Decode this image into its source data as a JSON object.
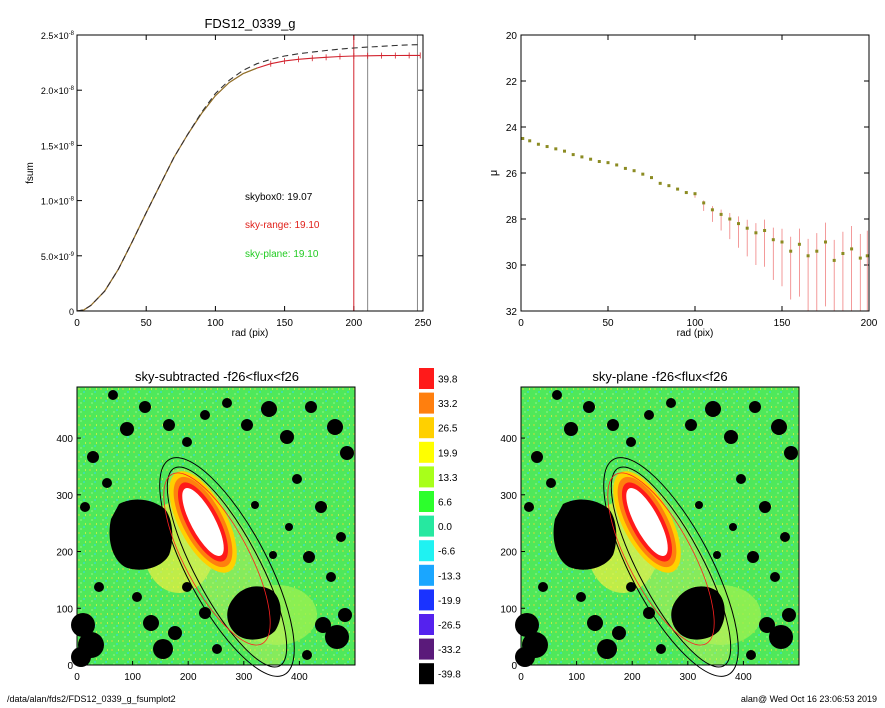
{
  "chart_data": [
    {
      "type": "line",
      "title": "FDS12_0339_g",
      "xlabel": "rad (pix)",
      "ylabel": "fsum",
      "xlim": [
        0,
        250
      ],
      "ylim": [
        0,
        2.5e-08
      ],
      "x_ticks": [
        0,
        50,
        100,
        150,
        200,
        250
      ],
      "x_tick_labels": [
        "0",
        "50",
        "100",
        "150",
        "200",
        "250"
      ],
      "y_ticks": [
        0,
        5e-09,
        1e-08,
        1.5e-08,
        2e-08,
        2.5e-08
      ],
      "y_tick_labels": [
        {
          "mant": "0",
          "exp": ""
        },
        {
          "mant": "5.0×10",
          "exp": "-9"
        },
        {
          "mant": "1.0×10",
          "exp": "-8"
        },
        {
          "mant": "1.5×10",
          "exp": "-8"
        },
        {
          "mant": "2.0×10",
          "exp": "-8"
        },
        {
          "mant": "2.5×10",
          "exp": "-8"
        }
      ],
      "series": [
        {
          "kind": "curve-of-growth",
          "color": "#d2222d",
          "x": [
            0,
            5,
            10,
            20,
            30,
            40,
            50,
            60,
            70,
            80,
            90,
            100,
            110,
            120,
            130,
            140,
            150,
            160,
            170,
            180,
            190,
            200,
            210,
            220,
            230,
            240,
            248
          ],
          "values": [
            0,
            1e-10,
            5e-10,
            1.8e-09,
            3.8e-09,
            6.3e-09,
            8.9e-09,
            1.14e-08,
            1.39e-08,
            1.6e-08,
            1.79e-08,
            1.95e-08,
            2.07e-08,
            2.15e-08,
            2.2e-08,
            2.24e-08,
            2.265e-08,
            2.28e-08,
            2.29e-08,
            2.298e-08,
            2.305e-08,
            2.31e-08,
            2.312e-08,
            2.313e-08,
            2.314e-08,
            2.315e-08,
            2.315e-08
          ]
        },
        {
          "kind": "sky-plane-curve",
          "color": "#8a7a2a",
          "x": [
            0,
            5,
            10,
            20,
            30,
            40,
            50,
            60,
            70,
            80,
            90,
            100,
            110,
            120,
            130
          ],
          "values": [
            0,
            1e-10,
            5e-10,
            1.8e-09,
            3.8e-09,
            6.3e-09,
            8.9e-09,
            1.14e-08,
            1.39e-08,
            1.6e-08,
            1.79e-08,
            1.95e-08,
            2.07e-08,
            2.15e-08,
            2.2e-08
          ]
        },
        {
          "kind": "dashed-reference",
          "color": "#333333",
          "x": [
            0,
            5,
            10,
            20,
            30,
            40,
            50,
            60,
            70,
            80,
            90,
            100,
            110,
            120,
            130,
            140,
            150,
            160,
            170,
            180,
            190,
            200,
            210,
            220,
            230,
            240,
            248
          ],
          "values": [
            0,
            1e-10,
            5e-10,
            1.8e-09,
            3.8e-09,
            6.3e-09,
            8.9e-09,
            1.14e-08,
            1.39e-08,
            1.6e-08,
            1.8e-08,
            1.97e-08,
            2.09e-08,
            2.18e-08,
            2.24e-08,
            2.28e-08,
            2.31e-08,
            2.33e-08,
            2.345e-08,
            2.36e-08,
            2.372e-08,
            2.382e-08,
            2.39e-08,
            2.398e-08,
            2.405e-08,
            2.41e-08,
            2.413e-08
          ]
        }
      ],
      "vlines": [
        {
          "x": 200,
          "color": "#d2222d"
        },
        {
          "x": 210,
          "color": "#888888"
        },
        {
          "x": 246,
          "color": "#888888"
        }
      ],
      "annotations": [
        {
          "text": "skybox0: 19.07",
          "color": "#000000"
        },
        {
          "text": "sky-range: 19.10",
          "color": "#e0201a"
        },
        {
          "text": "sky-plane: 19.10",
          "color": "#22cc22"
        }
      ]
    },
    {
      "type": "scatter",
      "title": "",
      "xlabel": "rad (pix)",
      "ylabel": "μ",
      "xlim": [
        0,
        200
      ],
      "ylim": [
        32,
        20
      ],
      "x_ticks": [
        0,
        50,
        100,
        150,
        200
      ],
      "y_ticks": [
        20,
        22,
        24,
        26,
        28,
        30,
        32
      ],
      "series": [
        {
          "color": "#8b8b22",
          "x": [
            1,
            5,
            10,
            15,
            20,
            25,
            30,
            35,
            40,
            45,
            50,
            55,
            60,
            65,
            70,
            75,
            80,
            85,
            90,
            95,
            100,
            105,
            110,
            115,
            120,
            125,
            130,
            135,
            140,
            145,
            150,
            155,
            160,
            165,
            170,
            175,
            180,
            185,
            190,
            195,
            199
          ],
          "values": [
            24.5,
            24.6,
            24.75,
            24.85,
            24.95,
            25.05,
            25.2,
            25.3,
            25.4,
            25.5,
            25.55,
            25.65,
            25.8,
            25.9,
            26.05,
            26.2,
            26.45,
            26.55,
            26.7,
            26.85,
            26.9,
            27.3,
            27.6,
            27.8,
            28.0,
            28.2,
            28.4,
            28.6,
            28.5,
            28.9,
            29.0,
            29.4,
            29.1,
            29.6,
            29.4,
            29.0,
            29.8,
            29.5,
            29.3,
            29.7,
            29.6
          ]
        }
      ],
      "error_bar_color": "#f08080"
    },
    {
      "type": "heatmap",
      "title": "sky-subtracted -f26<flux<f26",
      "xlim": [
        0,
        500
      ],
      "ylim": [
        0,
        490
      ],
      "x_ticks": [
        0,
        100,
        200,
        300,
        400
      ],
      "y_ticks": [
        0,
        100,
        200,
        300,
        400
      ]
    },
    {
      "type": "heatmap",
      "title": "sky-plane -f26<flux<f26",
      "xlim": [
        0,
        500
      ],
      "ylim": [
        0,
        490
      ],
      "x_ticks": [
        0,
        100,
        200,
        300,
        400
      ],
      "y_ticks": [
        0,
        100,
        200,
        300,
        400
      ]
    },
    {
      "type": "colorbar",
      "levels": [
        {
          "label": "39.8",
          "color": "#ff1a1a"
        },
        {
          "label": "33.2",
          "color": "#ff7f0e"
        },
        {
          "label": "26.5",
          "color": "#ffd000"
        },
        {
          "label": "19.9",
          "color": "#ffff00"
        },
        {
          "label": "13.3",
          "color": "#a8ff1a"
        },
        {
          "label": "6.6",
          "color": "#2cff2c"
        },
        {
          "label": "0.0",
          "color": "#26e8a0"
        },
        {
          "label": "-6.6",
          "color": "#1ff2f2"
        },
        {
          "label": "-13.3",
          "color": "#1aa6ff"
        },
        {
          "label": "-19.9",
          "color": "#1a33ff"
        },
        {
          "label": "-26.5",
          "color": "#5522ee"
        },
        {
          "label": "-33.2",
          "color": "#5a1a7a"
        },
        {
          "label": "-39.8",
          "color": "#000000"
        }
      ]
    }
  ],
  "footer": {
    "left": "/data/alan/fds2/FDS12_0339_g_fsumplot2",
    "right": "alan@  Wed Oct 16 23:06:53 2019"
  }
}
